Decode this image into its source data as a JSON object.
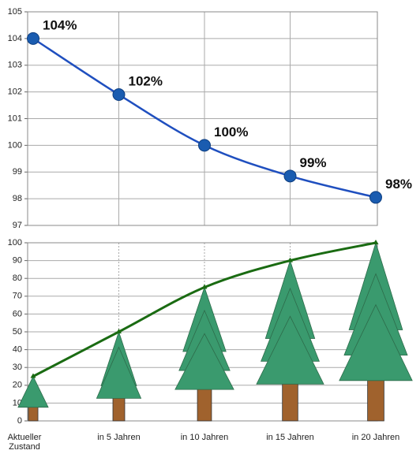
{
  "chart_data": [
    {
      "type": "line",
      "values": [
        104,
        101.9,
        100,
        98.85,
        98.05
      ],
      "value_labels": [
        "104%",
        "102%",
        "100%",
        "99%",
        "98%"
      ],
      "color": "#1f4fbf",
      "ylim": [
        97,
        105
      ],
      "yticks": [
        97,
        98,
        99,
        100,
        101,
        102,
        103,
        104,
        105
      ],
      "grid": true
    },
    {
      "type": "trees",
      "categories": [
        "Aktueller Zustand",
        "in 5 Jahren",
        "in 10 Jahren",
        "in 15 Jahren",
        "in 20 Jahren"
      ],
      "values": [
        25,
        50,
        75,
        90,
        100
      ],
      "color": "#1a6b12",
      "ylim": [
        0,
        100
      ],
      "yticks": [
        0,
        10,
        20,
        30,
        40,
        50,
        60,
        70,
        80,
        90,
        100
      ],
      "grid": true
    }
  ]
}
